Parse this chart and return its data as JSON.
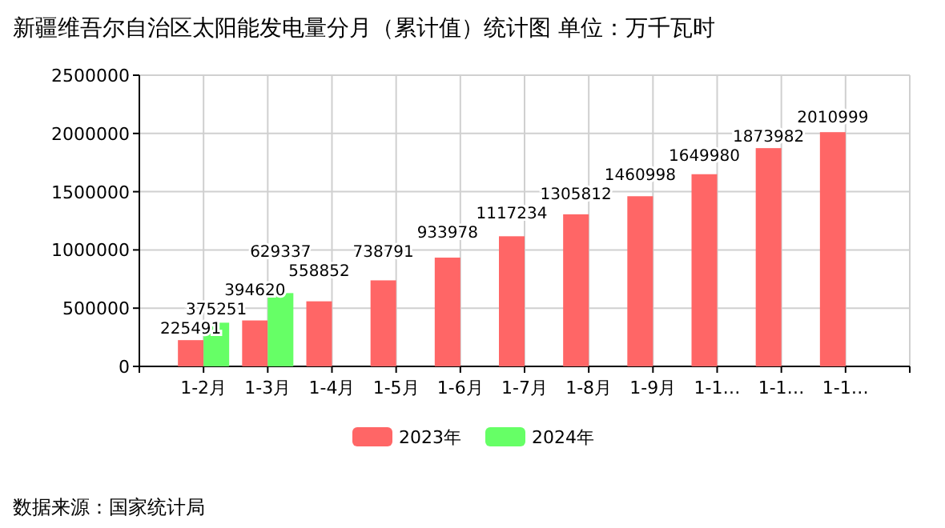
{
  "chart_data": {
    "type": "bar",
    "title": "新疆维吾尔自治区太阳能发电量分月（累计值）统计图 单位：万千瓦时",
    "categories": [
      "1-2月",
      "1-3月",
      "1-4月",
      "1-5月",
      "1-6月",
      "1-7月",
      "1-8月",
      "1-9月",
      "1-1…",
      "1-1…",
      "1-1…"
    ],
    "series": [
      {
        "name": "2023年",
        "color": "#ff6666",
        "values": [
          225491,
          394620,
          558852,
          738791,
          933978,
          1117234,
          1305812,
          1460998,
          1649980,
          1873982,
          2010999
        ]
      },
      {
        "name": "2024年",
        "color": "#66ff66",
        "values": [
          375251,
          629337,
          null,
          null,
          null,
          null,
          null,
          null,
          null,
          null,
          null
        ]
      }
    ],
    "ylim": [
      0,
      2500000
    ],
    "yticks": [
      0,
      500000,
      1000000,
      1500000,
      2000000,
      2500000
    ],
    "grid": true,
    "data_labels": true,
    "legend": "bottom",
    "annotations": [
      "数据来源：国家统计局"
    ]
  }
}
